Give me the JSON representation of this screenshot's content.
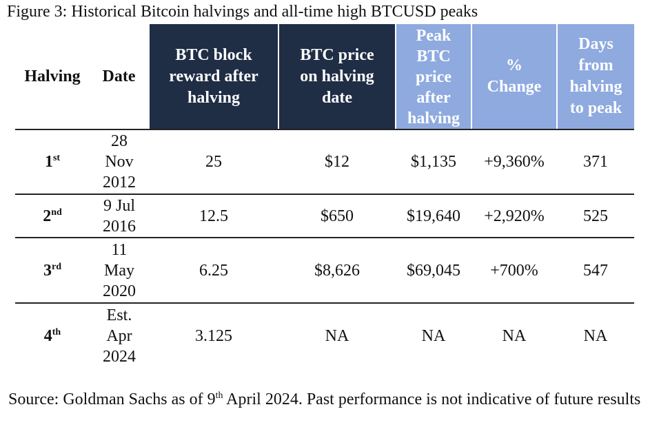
{
  "title": "Figure 3: Historical Bitcoin halvings and all-time high BTCUSD peaks",
  "table": {
    "header": [
      [
        "Halving"
      ],
      [
        "Date"
      ],
      [
        "BTC block",
        "reward after",
        "halving"
      ],
      [
        "BTC price",
        "on halving",
        "date"
      ],
      [
        "Peak",
        "BTC",
        "price",
        "after",
        "halving"
      ],
      [
        "%",
        "Change"
      ],
      [
        "Days",
        "from",
        "halving",
        "to peak"
      ]
    ],
    "rows": [
      {
        "halving": {
          "number": "1",
          "suffix": "st"
        },
        "date": [
          "28",
          "Nov",
          "2012"
        ],
        "reward": "25",
        "price": "$12",
        "peak": "$1,135",
        "change": "+9,360%",
        "days": "371"
      },
      {
        "halving": {
          "number": "2",
          "suffix": "nd"
        },
        "date": [
          "9 Jul",
          "2016"
        ],
        "reward": "12.5",
        "price": "$650",
        "peak": "$19,640",
        "change": "+2,920%",
        "days": "525"
      },
      {
        "halving": {
          "number": "3",
          "suffix": "rd"
        },
        "date": [
          "11",
          "May",
          "2020"
        ],
        "reward": "6.25",
        "price": "$8,626",
        "peak": "$69,045",
        "change": "+700%",
        "days": "547"
      },
      {
        "halving": {
          "number": "4",
          "suffix": "th"
        },
        "date": [
          "Est.",
          "Apr",
          "2024"
        ],
        "reward": "3.125",
        "price": "NA",
        "peak": "NA",
        "change": "NA",
        "days": "NA"
      }
    ]
  },
  "source": {
    "before": "Source: Goldman Sachs as of 9",
    "sup": "th",
    "after": " April 2024. Past performance is not indicative of future results"
  }
}
